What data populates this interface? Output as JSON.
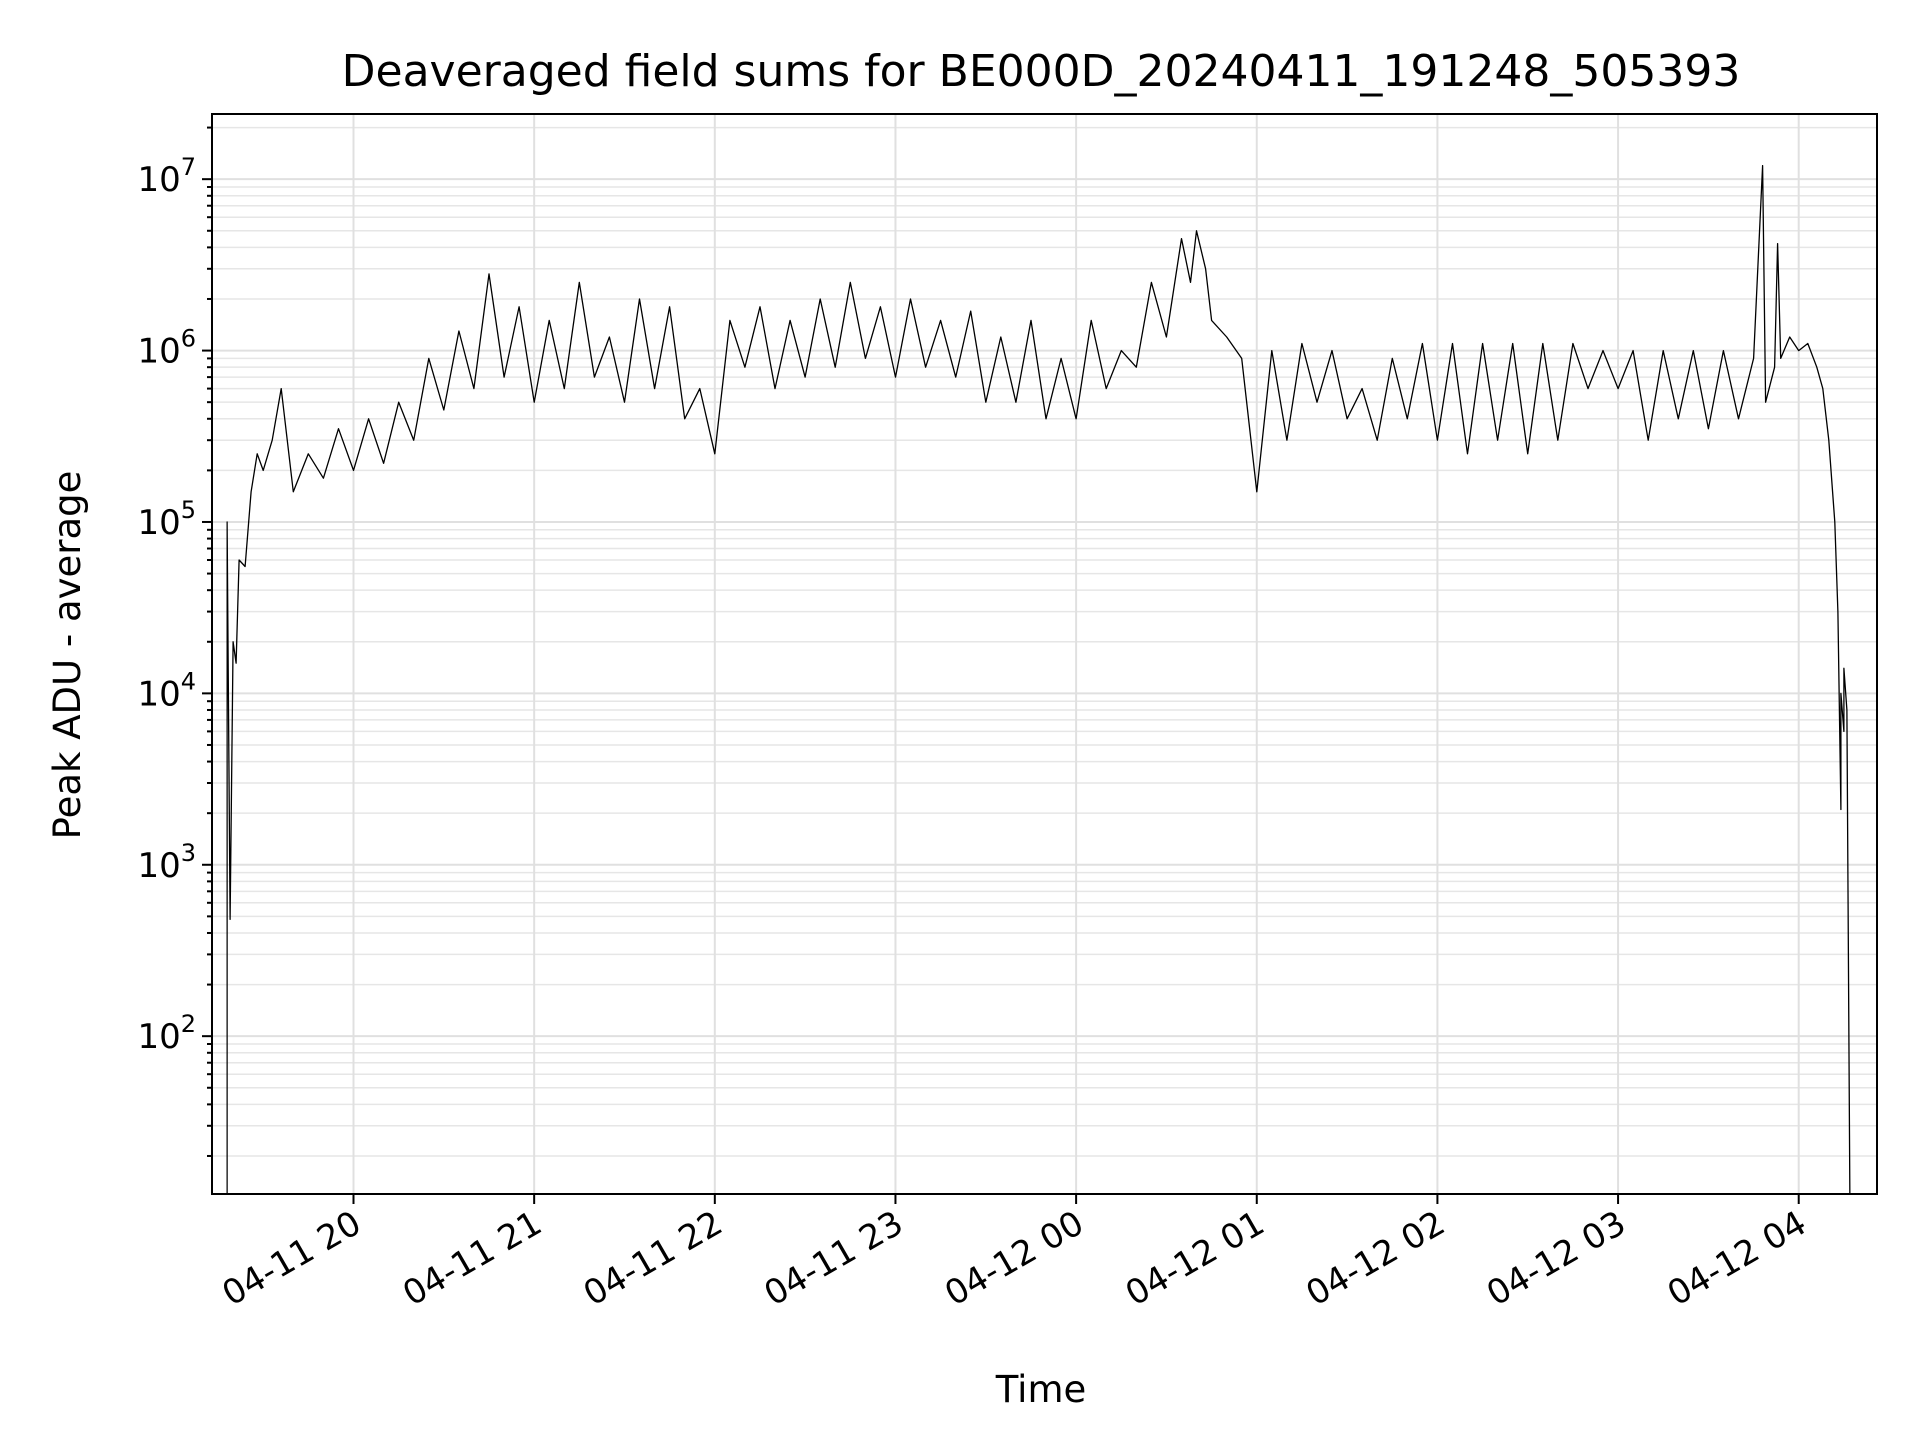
{
  "chart_data": {
    "type": "line",
    "title": "Deaveraged field sums for BE000D_20240411_191248_505393",
    "xlabel": "Time",
    "ylabel": "Peak ADU - average",
    "yscale": "log",
    "ylim": [
      12,
      24000000
    ],
    "xlim": [
      "2024-04-11 19:13",
      "2024-04-12 04:26"
    ],
    "grid": true,
    "x_ticks": [
      {
        "t": "2024-04-11 20:00",
        "label": "04-11 20"
      },
      {
        "t": "2024-04-11 21:00",
        "label": "04-11 21"
      },
      {
        "t": "2024-04-11 22:00",
        "label": "04-11 22"
      },
      {
        "t": "2024-04-11 23:00",
        "label": "04-11 23"
      },
      {
        "t": "2024-04-12 00:00",
        "label": "04-12 00"
      },
      {
        "t": "2024-04-12 01:00",
        "label": "04-12 01"
      },
      {
        "t": "2024-04-12 02:00",
        "label": "04-12 02"
      },
      {
        "t": "2024-04-12 03:00",
        "label": "04-12 03"
      },
      {
        "t": "2024-04-12 04:00",
        "label": "04-12 04"
      }
    ],
    "y_ticks": [
      {
        "value": 100,
        "base": "10",
        "exp": "2"
      },
      {
        "value": 1000,
        "base": "10",
        "exp": "3"
      },
      {
        "value": 10000,
        "base": "10",
        "exp": "4"
      },
      {
        "value": 100000,
        "base": "10",
        "exp": "5"
      },
      {
        "value": 1000000,
        "base": "10",
        "exp": "6"
      },
      {
        "value": 10000000,
        "base": "10",
        "exp": "7"
      }
    ],
    "series": [
      {
        "color": "#000000",
        "points": [
          [
            "2024-04-11 19:18",
            10
          ],
          [
            "2024-04-11 19:18",
            100000
          ],
          [
            "2024-04-11 19:19",
            480
          ],
          [
            "2024-04-11 19:20",
            20000
          ],
          [
            "2024-04-11 19:21",
            15000
          ],
          [
            "2024-04-11 19:22",
            60000
          ],
          [
            "2024-04-11 19:24",
            55000
          ],
          [
            "2024-04-11 19:26",
            150000
          ],
          [
            "2024-04-11 19:28",
            250000
          ],
          [
            "2024-04-11 19:30",
            200000
          ],
          [
            "2024-04-11 19:33",
            300000
          ],
          [
            "2024-04-11 19:36",
            600000
          ],
          [
            "2024-04-11 19:40",
            150000
          ],
          [
            "2024-04-11 19:45",
            250000
          ],
          [
            "2024-04-11 19:50",
            180000
          ],
          [
            "2024-04-11 19:55",
            350000
          ],
          [
            "2024-04-11 20:00",
            200000
          ],
          [
            "2024-04-11 20:05",
            400000
          ],
          [
            "2024-04-11 20:10",
            220000
          ],
          [
            "2024-04-11 20:15",
            500000
          ],
          [
            "2024-04-11 20:20",
            300000
          ],
          [
            "2024-04-11 20:25",
            900000
          ],
          [
            "2024-04-11 20:30",
            450000
          ],
          [
            "2024-04-11 20:35",
            1300000
          ],
          [
            "2024-04-11 20:40",
            600000
          ],
          [
            "2024-04-11 20:45",
            2800000
          ],
          [
            "2024-04-11 20:50",
            700000
          ],
          [
            "2024-04-11 20:55",
            1800000
          ],
          [
            "2024-04-11 21:00",
            500000
          ],
          [
            "2024-04-11 21:05",
            1500000
          ],
          [
            "2024-04-11 21:10",
            600000
          ],
          [
            "2024-04-11 21:15",
            2500000
          ],
          [
            "2024-04-11 21:20",
            700000
          ],
          [
            "2024-04-11 21:25",
            1200000
          ],
          [
            "2024-04-11 21:30",
            500000
          ],
          [
            "2024-04-11 21:35",
            2000000
          ],
          [
            "2024-04-11 21:40",
            600000
          ],
          [
            "2024-04-11 21:45",
            1800000
          ],
          [
            "2024-04-11 21:50",
            400000
          ],
          [
            "2024-04-11 21:55",
            600000
          ],
          [
            "2024-04-11 22:00",
            250000
          ],
          [
            "2024-04-11 22:05",
            1500000
          ],
          [
            "2024-04-11 22:10",
            800000
          ],
          [
            "2024-04-11 22:15",
            1800000
          ],
          [
            "2024-04-11 22:20",
            600000
          ],
          [
            "2024-04-11 22:25",
            1500000
          ],
          [
            "2024-04-11 22:30",
            700000
          ],
          [
            "2024-04-11 22:35",
            2000000
          ],
          [
            "2024-04-11 22:40",
            800000
          ],
          [
            "2024-04-11 22:45",
            2500000
          ],
          [
            "2024-04-11 22:50",
            900000
          ],
          [
            "2024-04-11 22:55",
            1800000
          ],
          [
            "2024-04-11 23:00",
            700000
          ],
          [
            "2024-04-11 23:05",
            2000000
          ],
          [
            "2024-04-11 23:10",
            800000
          ],
          [
            "2024-04-11 23:15",
            1500000
          ],
          [
            "2024-04-11 23:20",
            700000
          ],
          [
            "2024-04-11 23:25",
            1700000
          ],
          [
            "2024-04-11 23:30",
            500000
          ],
          [
            "2024-04-11 23:35",
            1200000
          ],
          [
            "2024-04-11 23:40",
            500000
          ],
          [
            "2024-04-11 23:45",
            1500000
          ],
          [
            "2024-04-11 23:50",
            400000
          ],
          [
            "2024-04-11 23:55",
            900000
          ],
          [
            "2024-04-12 00:00",
            400000
          ],
          [
            "2024-04-12 00:05",
            1500000
          ],
          [
            "2024-04-12 00:10",
            600000
          ],
          [
            "2024-04-12 00:15",
            1000000
          ],
          [
            "2024-04-12 00:20",
            800000
          ],
          [
            "2024-04-12 00:25",
            2500000
          ],
          [
            "2024-04-12 00:30",
            1200000
          ],
          [
            "2024-04-12 00:35",
            4500000
          ],
          [
            "2024-04-12 00:38",
            2500000
          ],
          [
            "2024-04-12 00:40",
            5000000
          ],
          [
            "2024-04-12 00:43",
            3000000
          ],
          [
            "2024-04-12 00:45",
            1500000
          ],
          [
            "2024-04-12 00:50",
            1200000
          ],
          [
            "2024-04-12 00:55",
            900000
          ],
          [
            "2024-04-12 01:00",
            150000
          ],
          [
            "2024-04-12 01:05",
            1000000
          ],
          [
            "2024-04-12 01:10",
            300000
          ],
          [
            "2024-04-12 01:15",
            1100000
          ],
          [
            "2024-04-12 01:20",
            500000
          ],
          [
            "2024-04-12 01:25",
            1000000
          ],
          [
            "2024-04-12 01:30",
            400000
          ],
          [
            "2024-04-12 01:35",
            600000
          ],
          [
            "2024-04-12 01:40",
            300000
          ],
          [
            "2024-04-12 01:45",
            900000
          ],
          [
            "2024-04-12 01:50",
            400000
          ],
          [
            "2024-04-12 01:55",
            1100000
          ],
          [
            "2024-04-12 02:00",
            300000
          ],
          [
            "2024-04-12 02:05",
            1100000
          ],
          [
            "2024-04-12 02:10",
            250000
          ],
          [
            "2024-04-12 02:15",
            1100000
          ],
          [
            "2024-04-12 02:20",
            300000
          ],
          [
            "2024-04-12 02:25",
            1100000
          ],
          [
            "2024-04-12 02:30",
            250000
          ],
          [
            "2024-04-12 02:35",
            1100000
          ],
          [
            "2024-04-12 02:40",
            300000
          ],
          [
            "2024-04-12 02:45",
            1100000
          ],
          [
            "2024-04-12 02:50",
            600000
          ],
          [
            "2024-04-12 02:55",
            1000000
          ],
          [
            "2024-04-12 03:00",
            600000
          ],
          [
            "2024-04-12 03:05",
            1000000
          ],
          [
            "2024-04-12 03:10",
            300000
          ],
          [
            "2024-04-12 03:15",
            1000000
          ],
          [
            "2024-04-12 03:20",
            400000
          ],
          [
            "2024-04-12 03:25",
            1000000
          ],
          [
            "2024-04-12 03:30",
            350000
          ],
          [
            "2024-04-12 03:35",
            1000000
          ],
          [
            "2024-04-12 03:40",
            400000
          ],
          [
            "2024-04-12 03:45",
            900000
          ],
          [
            "2024-04-12 03:48",
            12000000
          ],
          [
            "2024-04-12 03:49",
            500000
          ],
          [
            "2024-04-12 03:52",
            800000
          ],
          [
            "2024-04-12 03:53",
            4200000
          ],
          [
            "2024-04-12 03:54",
            900000
          ],
          [
            "2024-04-12 03:57",
            1200000
          ],
          [
            "2024-04-12 04:00",
            1000000
          ],
          [
            "2024-04-12 04:03",
            1100000
          ],
          [
            "2024-04-12 04:06",
            800000
          ],
          [
            "2024-04-12 04:08",
            600000
          ],
          [
            "2024-04-12 04:10",
            300000
          ],
          [
            "2024-04-12 04:12",
            100000
          ],
          [
            "2024-04-12 04:13",
            30000
          ],
          [
            "2024-04-12 04:14",
            2100
          ],
          [
            "2024-04-12 04:14",
            10000
          ],
          [
            "2024-04-12 04:15",
            6000
          ],
          [
            "2024-04-12 04:15",
            14000
          ],
          [
            "2024-04-12 04:16",
            8000
          ],
          [
            "2024-04-12 04:17",
            10
          ]
        ]
      }
    ]
  }
}
